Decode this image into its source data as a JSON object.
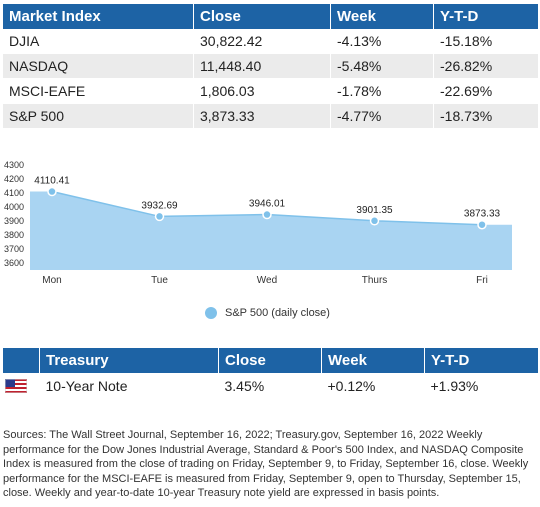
{
  "market": {
    "headers": [
      "Market Index",
      "Close",
      "Week",
      "Y-T-D"
    ],
    "rows": [
      {
        "index": "DJIA",
        "close": "30,822.42",
        "week": "-4.13%",
        "ytd": "-15.18%"
      },
      {
        "index": "NASDAQ",
        "close": "11,448.40",
        "week": "-5.48%",
        "ytd": "-26.82%"
      },
      {
        "index": "MSCI-EAFE",
        "close": "1,806.03",
        "week": "-1.78%",
        "ytd": "-22.69%"
      },
      {
        "index": "S&P 500",
        "close": "3,873.33",
        "week": "-4.77%",
        "ytd": "-18.73%"
      }
    ]
  },
  "chart_data": {
    "type": "area",
    "title": "",
    "xlabel": "",
    "ylabel": "",
    "categories": [
      "Mon",
      "Tue",
      "Wed",
      "Thurs",
      "Fri"
    ],
    "series": [
      {
        "name": "S&P 500 (daily close)",
        "values": [
          4110.41,
          3932.69,
          3946.01,
          3901.35,
          3873.33
        ]
      }
    ],
    "data_labels": [
      "4110.41",
      "3932.69",
      "3946.01",
      "3901.35",
      "3873.33"
    ],
    "yticks": [
      3600,
      3700,
      3800,
      3900,
      4000,
      4100,
      4200,
      4300
    ],
    "ylim": [
      3550,
      4300
    ],
    "grid": false,
    "legend": "bottom-center",
    "fill_color": "#a9d4f2",
    "line_color": "#7fc1ea"
  },
  "treasury": {
    "headers": [
      "Treasury",
      "Close",
      "Week",
      "Y-T-D"
    ],
    "row": {
      "name": "10-Year Note",
      "close": "3.45%",
      "week": "+0.12%",
      "ytd": "+1.93%"
    },
    "flag_icon": "us-flag-icon"
  },
  "sources": "Sources: The Wall Street Journal, September 16, 2022; Treasury.gov, September 16, 2022 Weekly performance for the Dow Jones Industrial Average, Standard & Poor's 500 Index, and NASDAQ Composite Index is measured from the close of trading on Friday, September 9, to Friday, September 16, close. Weekly performance for the MSCI-EAFE is measured from Friday, September 9, open to Thursday, September 15, close. Weekly and year-to-date 10-year Treasury note yield are expressed in basis points.",
  "colors": {
    "header_bg": "#1d63a5",
    "row_alt": "#ebebeb"
  }
}
